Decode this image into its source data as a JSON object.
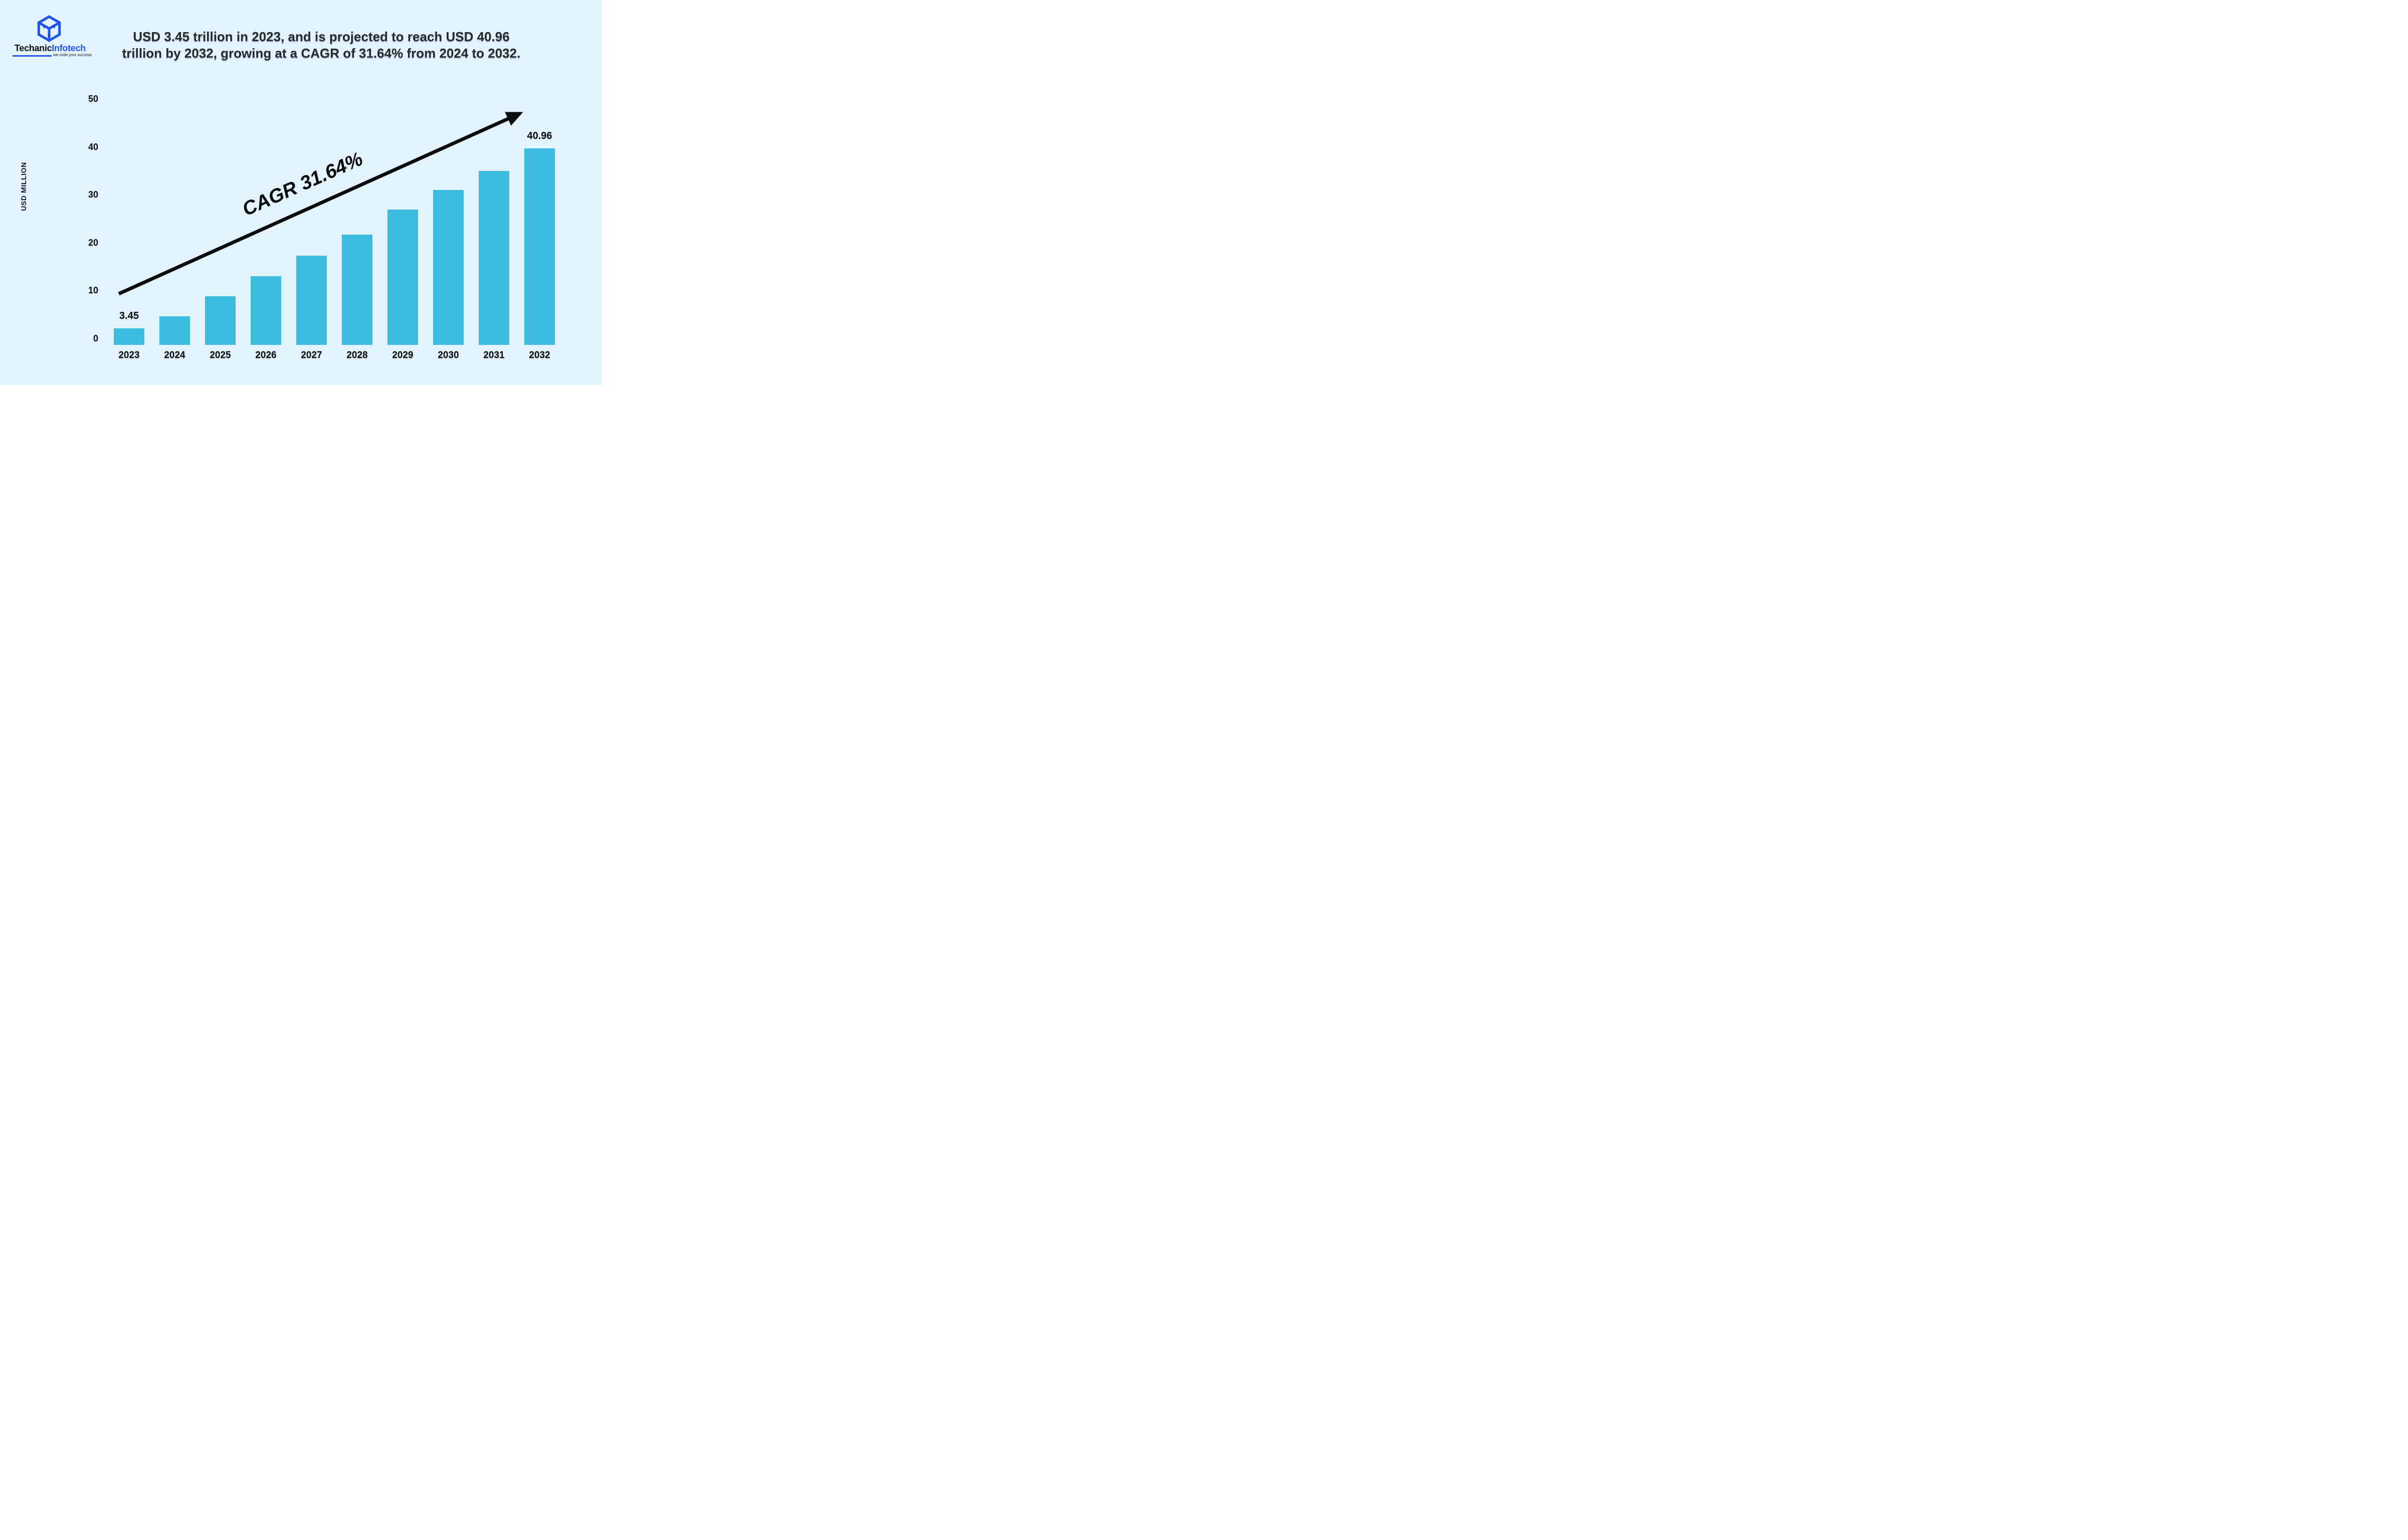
{
  "logo": {
    "brand_black": "Techanic",
    "brand_blue": "Infotech",
    "tagline": "we code your success"
  },
  "title": {
    "line1": "USD 3.45 trillion in 2023, and is projected to reach USD 40.96",
    "line2": "trillion by 2032, growing at a CAGR of 31.64% from 2024 to 2032."
  },
  "annotation": {
    "cagr_text": "CAGR 31.64%"
  },
  "colors": {
    "background": "#e2f3fc",
    "bar": "#3cbcde",
    "logo_blue": "#2355ea",
    "text_dark": "#232b31",
    "arrow_black": "#0b0c0d"
  },
  "chart_data": {
    "type": "bar",
    "title": "USD 3.45 trillion in 2023, and is projected to reach USD 40.96 trillion by 2032, growing at a CAGR of 31.64% from 2024 to 2032.",
    "xlabel": "",
    "ylabel": "USD MILLION",
    "categories": [
      "2023",
      "2024",
      "2025",
      "2026",
      "2027",
      "2028",
      "2029",
      "2030",
      "2031",
      "2032"
    ],
    "values": [
      3.45,
      6.0,
      10.1,
      14.3,
      18.6,
      23.0,
      28.3,
      32.3,
      36.3,
      40.96
    ],
    "value_labels": [
      "3.45",
      "",
      "",
      "",
      "",
      "",
      "",
      "",
      "",
      "40.96"
    ],
    "ylim": [
      0,
      50
    ],
    "yticks": [
      0,
      10,
      20,
      30,
      40,
      50
    ],
    "grid": false,
    "legend": false,
    "bar_color": "#3cbcde",
    "annotations": [
      {
        "type": "arrow",
        "text": "CAGR 31.64%",
        "direction": "up-right"
      }
    ]
  }
}
